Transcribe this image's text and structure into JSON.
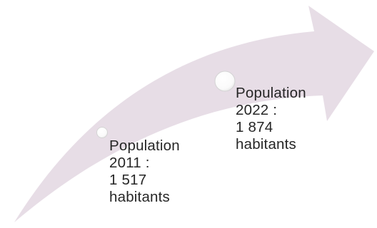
{
  "colors": {
    "arrow_fill": "#e7dde6",
    "bubble_fill": "#ffffff",
    "bubble_stroke": "#d4d4d4",
    "text": "#262626"
  },
  "milestones": [
    {
      "lines": [
        "Population",
        "2011 :",
        "1 517",
        "habitants"
      ],
      "marker_size": "small"
    },
    {
      "lines": [
        "Population",
        "2022 :",
        "1 874",
        "habitants"
      ],
      "marker_size": "large"
    }
  ]
}
